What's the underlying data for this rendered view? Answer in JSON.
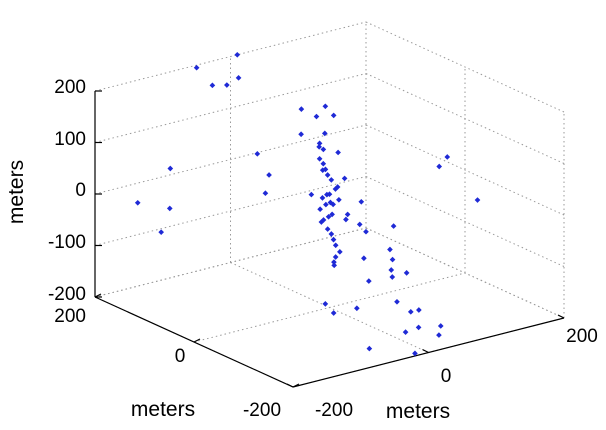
{
  "chart_data": {
    "type": "scatter",
    "series_color": "#1f2ad6",
    "zlabel": "meters",
    "xlabel": "meters",
    "ylabel": "meters",
    "xlim": [
      -200,
      200
    ],
    "ylim": [
      -200,
      200
    ],
    "zlim": [
      -200,
      200
    ],
    "z_ticks": [
      "200",
      "100",
      "0",
      "-100",
      "-200"
    ],
    "x_ticks": [
      "-200",
      "0",
      "200"
    ],
    "y_ticks": [
      "200",
      "0",
      "-200"
    ],
    "grid": true,
    "view": "3d",
    "points": [
      [
        -20,
        180,
        160
      ],
      [
        -10,
        170,
        175
      ],
      [
        -50,
        200,
        195
      ],
      [
        10,
        200,
        200
      ],
      [
        -45,
        175,
        170
      ],
      [
        -140,
        130,
        60
      ],
      [
        -210,
        100,
        30
      ],
      [
        -190,
        80,
        -25
      ],
      [
        -170,
        90,
        10
      ],
      [
        130,
        -60,
        75
      ],
      [
        140,
        -30,
        40
      ],
      [
        160,
        -80,
        -10
      ],
      [
        10,
        -140,
        -190
      ],
      [
        -80,
        -190,
        -170
      ],
      [
        0,
        -180,
        -160
      ],
      [
        40,
        -170,
        -175
      ],
      [
        -20,
        -200,
        -195
      ],
      [
        30,
        -180,
        -185
      ],
      [
        15,
        -160,
        -140
      ],
      [
        -10,
        -150,
        -120
      ],
      [
        5,
        -120,
        -90
      ],
      [
        20,
        -100,
        -70
      ],
      [
        -15,
        -90,
        -60
      ],
      [
        10,
        -60,
        -30
      ],
      [
        -5,
        -40,
        -10
      ],
      [
        25,
        -30,
        10
      ],
      [
        -25,
        -20,
        30
      ],
      [
        15,
        -10,
        50
      ],
      [
        -10,
        0,
        70
      ],
      [
        20,
        10,
        90
      ],
      [
        0,
        20,
        110
      ],
      [
        -20,
        30,
        130
      ],
      [
        10,
        40,
        150
      ],
      [
        -5,
        50,
        165
      ],
      [
        30,
        -20,
        -40
      ],
      [
        -30,
        -50,
        -80
      ],
      [
        40,
        -70,
        -110
      ],
      [
        -40,
        -110,
        -140
      ],
      [
        25,
        -130,
        -160
      ],
      [
        -15,
        -100,
        -100
      ],
      [
        5,
        5,
        0
      ],
      [
        0,
        0,
        20
      ],
      [
        -5,
        -5,
        -20
      ],
      [
        10,
        10,
        40
      ],
      [
        -10,
        -10,
        -40
      ],
      [
        5,
        15,
        60
      ],
      [
        -5,
        -15,
        -60
      ],
      [
        0,
        20,
        80
      ],
      [
        8,
        -8,
        10
      ],
      [
        -8,
        8,
        -10
      ],
      [
        12,
        0,
        30
      ],
      [
        -12,
        0,
        -30
      ],
      [
        6,
        12,
        50
      ],
      [
        -6,
        -12,
        -50
      ],
      [
        3,
        25,
        100
      ],
      [
        -3,
        -25,
        -80
      ],
      [
        9,
        5,
        -5
      ],
      [
        -9,
        -5,
        5
      ],
      [
        4,
        18,
        70
      ],
      [
        -4,
        -18,
        -70
      ],
      [
        15,
        30,
        120
      ],
      [
        -15,
        -30,
        -100
      ],
      [
        2,
        8,
        15
      ],
      [
        -2,
        -8,
        -15
      ],
      [
        7,
        22,
        95
      ],
      [
        -7,
        -22,
        -90
      ],
      [
        11,
        3,
        25
      ],
      [
        -11,
        -3,
        -25
      ],
      [
        18,
        -12,
        -20
      ],
      [
        -18,
        12,
        20
      ],
      [
        60,
        -40,
        -90
      ],
      [
        -60,
        40,
        60
      ],
      [
        70,
        -60,
        -130
      ],
      [
        -70,
        50,
        100
      ],
      [
        50,
        60,
        130
      ],
      [
        -50,
        -60,
        -150
      ],
      [
        80,
        -20,
        -60
      ],
      [
        -80,
        20,
        40
      ],
      [
        45,
        70,
        145
      ],
      [
        -45,
        -70,
        -165
      ]
    ]
  }
}
